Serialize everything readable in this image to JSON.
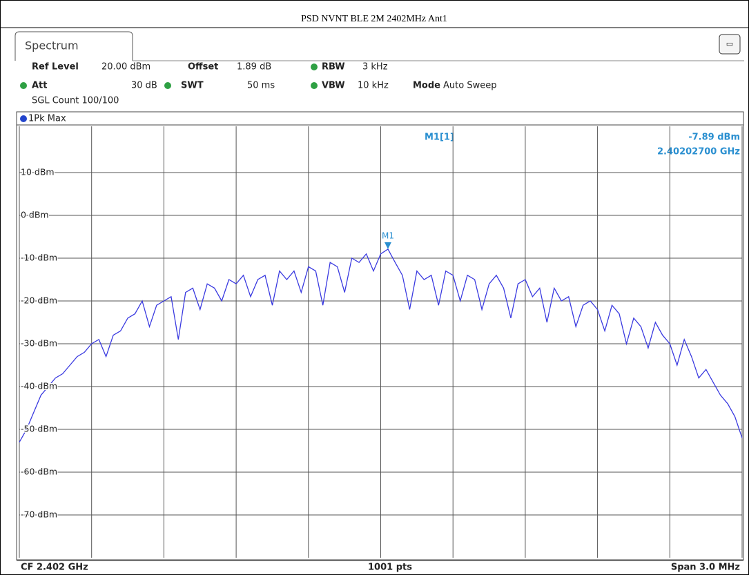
{
  "chart_data": {
    "type": "line",
    "title": "PSD NVNT BLE 2M 2402MHz Ant1",
    "tab": "Spectrum",
    "settings": [
      {
        "label": "Ref Level",
        "value": "20.00 dBm"
      },
      {
        "label": "Offset",
        "value": "1.89 dB"
      },
      {
        "label": "RBW",
        "value": "3 kHz"
      },
      {
        "label": "Att",
        "value": "30 dB"
      },
      {
        "label": "SWT",
        "value": "50 ms"
      },
      {
        "label": "VBW",
        "value": "10 kHz"
      },
      {
        "label": "Mode",
        "value": "Auto Sweep"
      }
    ],
    "sweep_count": "SGL Count 100/100",
    "trace_label": "1Pk Max",
    "footer": {
      "left": "CF 2.402 GHz",
      "center": "1001 pts",
      "right": "Span 3.0 MHz"
    },
    "marker": {
      "label": "M1",
      "readout": "M1[1]",
      "value": -7.89,
      "value_label": "-7.89 dBm",
      "frequency": "2.40202700 GHz"
    },
    "ylim": [
      -80,
      20
    ],
    "yticks": [
      {
        "value": 10,
        "label": "10 dBm"
      },
      {
        "value": 0,
        "label": "0 dBm"
      },
      {
        "value": -10,
        "label": "-10 dBm"
      },
      {
        "value": -20,
        "label": "-20 dBm"
      },
      {
        "value": -30,
        "label": "-30 dBm"
      },
      {
        "value": -40,
        "label": "-40 dBm"
      },
      {
        "value": -50,
        "label": "-50 dBm"
      },
      {
        "value": -60,
        "label": "-60 dBm"
      },
      {
        "value": -70,
        "label": "-70 dBm"
      }
    ],
    "grid": true,
    "series": [
      {
        "name": "1Pk Max",
        "color": "#3a3ae0",
        "values": [
          -53,
          -50,
          -46,
          -42,
          -40,
          -38,
          -37,
          -35,
          -33,
          -32,
          -30,
          -29,
          -33,
          -28,
          -27,
          -24,
          -23,
          -20,
          -26,
          -21,
          -20,
          -19,
          -29,
          -18,
          -17,
          -22,
          -16,
          -17,
          -20,
          -15,
          -16,
          -14,
          -19,
          -15,
          -14,
          -21,
          -13,
          -15,
          -13,
          -18,
          -12,
          -13,
          -21,
          -11,
          -12,
          -18,
          -10,
          -11,
          -9,
          -13,
          -9,
          -7.89,
          -11,
          -14,
          -22,
          -13,
          -15,
          -14,
          -21,
          -13,
          -14,
          -20,
          -14,
          -15,
          -22,
          -16,
          -14,
          -17,
          -24,
          -16,
          -15,
          -19,
          -17,
          -25,
          -17,
          -20,
          -19,
          -26,
          -21,
          -20,
          -22,
          -27,
          -21,
          -23,
          -30,
          -24,
          -26,
          -31,
          -25,
          -28,
          -30,
          -35,
          -29,
          -33,
          -38,
          -36,
          -39,
          -42,
          -44,
          -47,
          -52
        ]
      }
    ]
  }
}
